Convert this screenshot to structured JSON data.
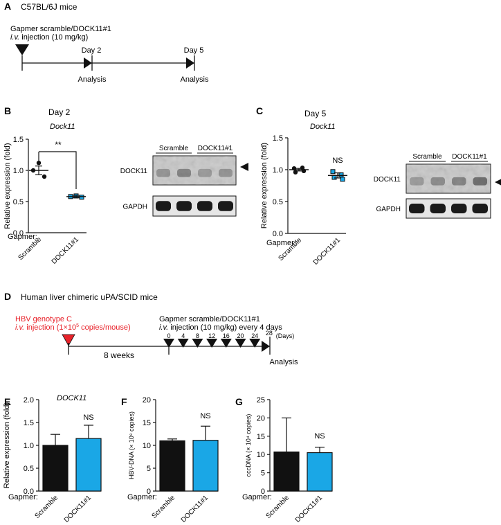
{
  "colors": {
    "black": "#111111",
    "blue": "#1aa7e6",
    "red": "#e8222a",
    "blot_bg": "#c8c8c8",
    "band": "#1a1a1a"
  },
  "panel_a": {
    "letter": "A",
    "title": "C57BL/6J mice",
    "treatment_line1": "Gapmer scramble/DOCK11#1",
    "treatment_iv": "i.v.",
    "treatment_rest": " injection (10 mg/kg)",
    "timepoints": [
      "Day 2",
      "Day 5"
    ],
    "analysis_label": "Analysis"
  },
  "panel_b": {
    "letter": "B",
    "title": "Day 2",
    "gene": "Dock11",
    "significance": "**",
    "ylabel": "Relative expression (fold)",
    "gapmer_label": "Gapmer:",
    "yticks": [
      "1.5",
      "1.0",
      "0.5",
      "0.0"
    ],
    "xticks": [
      "Scramble",
      "DOCK11#1"
    ],
    "blot": {
      "groups": [
        "Scramble",
        "DOCK11#1"
      ],
      "rows": [
        "DOCK11",
        "GAPDH"
      ]
    }
  },
  "panel_c": {
    "letter": "C",
    "title": "Day 5",
    "gene": "Dock11",
    "significance": "NS",
    "ylabel": "Relative expression (fold)",
    "gapmer_label": "Gapmer:",
    "yticks": [
      "1.5",
      "1.0",
      "0.5",
      "0.0"
    ],
    "xticks": [
      "Scramble",
      "DOCK11#1"
    ],
    "blot": {
      "groups": [
        "Scramble",
        "DOCK11#1"
      ],
      "rows": [
        "DOCK11",
        "GAPDH"
      ]
    }
  },
  "panel_d": {
    "letter": "D",
    "title": "Human liver chimeric uPA/SCID mice",
    "hbv_line1": "HBV genotype C",
    "hbv_iv": "i.v.",
    "hbv_rest_a": " injection (1×10",
    "hbv_sup": "5",
    "hbv_rest_b": " copies/mouse)",
    "weeks_label": "8 weeks",
    "treatment_line1": "Gapmer scramble/DOCK11#1",
    "treatment_iv": "i.v.",
    "treatment_rest": "  injection (10 mg/kg) every 4 days",
    "day_ticks": [
      "0",
      "4",
      "8",
      "12",
      "16",
      "20",
      "24",
      "28"
    ],
    "days_unit": "(Days)",
    "analysis_label": "Analysis"
  },
  "panel_e": {
    "letter": "E",
    "gene": "DOCK11",
    "significance": "NS",
    "ylabel": "Relative expression (fold)",
    "gapmer_label": "Gapmer:",
    "yticks": [
      "2.0",
      "1.5",
      "1.0",
      "0.5",
      "0.0"
    ]
  },
  "panel_f": {
    "letter": "F",
    "significance": "NS",
    "ylabel": "HBV-DNA (× 10⁸ copies)",
    "gapmer_label": "Gapmer:",
    "yticks": [
      "20",
      "15",
      "10",
      "5",
      "0"
    ]
  },
  "panel_g": {
    "letter": "G",
    "significance": "NS",
    "ylabel": "cccDNA (× 10⁴ copies)",
    "gapmer_label": "Gapmer:",
    "yticks": [
      "25",
      "20",
      "15",
      "10",
      "5",
      "0"
    ]
  },
  "chart_data": [
    {
      "id": "B",
      "type": "scatter",
      "title": "Day 2",
      "ylabel": "Relative expression (fold)",
      "categories": [
        "Scramble",
        "DOCK11#1"
      ],
      "ylim": [
        0,
        1.5
      ],
      "points": [
        [
          1.12,
          1.0,
          0.9
        ],
        [
          0.59,
          0.58,
          0.57
        ]
      ],
      "means": [
        1.0,
        0.58
      ],
      "errors": [
        0.07,
        0.02
      ]
    },
    {
      "id": "C",
      "type": "scatter",
      "title": "Day 5",
      "ylabel": "Relative expression (fold)",
      "categories": [
        "Scramble",
        "DOCK11#1"
      ],
      "ylim": [
        0,
        1.5
      ],
      "points": [
        [
          1.02,
          0.98,
          0.96,
          1.03
        ],
        [
          0.97,
          0.85,
          0.88,
          0.92
        ]
      ],
      "means": [
        1.0,
        0.91
      ],
      "errors": [
        0.02,
        0.04
      ]
    },
    {
      "id": "E",
      "type": "bar",
      "ylabel": "Relative expression (fold)",
      "categories": [
        "Scramble",
        "DOCK11#1"
      ],
      "ylim": [
        0,
        2.0
      ],
      "values": [
        1.0,
        1.15
      ],
      "errors": [
        0.24,
        0.29
      ]
    },
    {
      "id": "F",
      "type": "bar",
      "ylabel": "HBV-DNA (× 10⁸ copies)",
      "categories": [
        "Scramble",
        "DOCK11#1"
      ],
      "ylim": [
        0,
        20
      ],
      "values": [
        11,
        11.1
      ],
      "errors": [
        0.4,
        3.1
      ]
    },
    {
      "id": "G",
      "type": "bar",
      "ylabel": "cccDNA (× 10⁴ copies)",
      "categories": [
        "Scramble",
        "DOCK11#1"
      ],
      "ylim": [
        0,
        25
      ],
      "values": [
        10.7,
        10.5
      ],
      "errors": [
        9.3,
        1.5
      ]
    }
  ]
}
